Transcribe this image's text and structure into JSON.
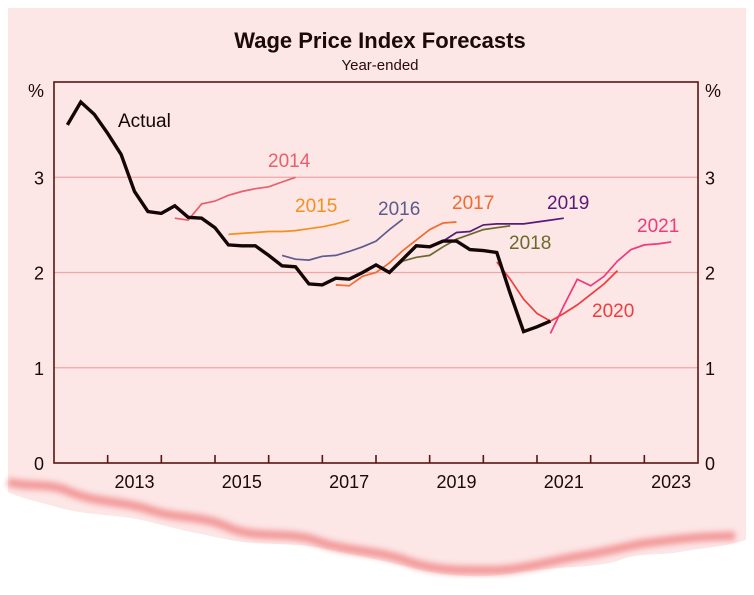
{
  "chart_data": {
    "type": "line",
    "title": "Wage Price Index Forecasts",
    "subtitle": "Year-ended",
    "ylabel_left": "%",
    "ylabel_right": "%",
    "xlabel": "",
    "ylim": [
      0,
      4
    ],
    "xlim": [
      2012,
      2024
    ],
    "y_ticks": [
      "0",
      "1",
      "2",
      "3"
    ],
    "x_tick_labels": [
      "2013",
      "2015",
      "2017",
      "2019",
      "2021",
      "2023"
    ],
    "grid": true,
    "frequency": "quarterly",
    "series": [
      {
        "name": "Actual",
        "label": "Actual",
        "color": "#140606",
        "start": "2012-Q1",
        "values": [
          3.55,
          3.79,
          3.66,
          3.46,
          3.24,
          2.85,
          2.64,
          2.62,
          2.7,
          2.58,
          2.57,
          2.47,
          2.29,
          2.28,
          2.28,
          2.18,
          2.07,
          2.06,
          1.88,
          1.87,
          1.94,
          1.93,
          2.0,
          2.08,
          2.0,
          2.14,
          2.28,
          2.27,
          2.33,
          2.33,
          2.24,
          2.23,
          2.21,
          1.78,
          1.38,
          1.43,
          1.49
        ]
      },
      {
        "name": "2014",
        "label": "2014",
        "color": "#e8606a",
        "start": "2014-Q1",
        "values": [
          2.57,
          2.55,
          2.72,
          2.75,
          2.81,
          2.85,
          2.88,
          2.9,
          2.95,
          3.0
        ]
      },
      {
        "name": "2015",
        "label": "2015",
        "color": "#f5901e",
        "start": "2015-Q1",
        "values": [
          2.4,
          2.41,
          2.42,
          2.43,
          2.43,
          2.44,
          2.46,
          2.48,
          2.51,
          2.55
        ]
      },
      {
        "name": "2016",
        "label": "2016",
        "color": "#5c5a8e",
        "start": "2016-Q1",
        "values": [
          2.18,
          2.14,
          2.13,
          2.17,
          2.18,
          2.22,
          2.27,
          2.33,
          2.45,
          2.56
        ]
      },
      {
        "name": "2017",
        "label": "2017",
        "color": "#f26a2e",
        "start": "2017-Q1",
        "values": [
          1.87,
          1.86,
          1.96,
          2.0,
          2.1,
          2.23,
          2.34,
          2.45,
          2.52,
          2.53
        ]
      },
      {
        "name": "2018",
        "label": "2018",
        "color": "#6b6a2a",
        "start": "2018-Q1",
        "values": [
          2.0,
          2.12,
          2.16,
          2.18,
          2.27,
          2.35,
          2.4,
          2.45,
          2.47,
          2.49
        ]
      },
      {
        "name": "2019",
        "label": "2019",
        "color": "#5a1a7a",
        "start": "2019-Q1",
        "values": [
          2.33,
          2.42,
          2.43,
          2.5,
          2.51,
          2.51,
          2.51,
          2.53,
          2.55,
          2.57
        ]
      },
      {
        "name": "2020",
        "label": "2020",
        "color": "#f23c3c",
        "start": "2020-Q1",
        "values": [
          2.11,
          1.93,
          1.72,
          1.57,
          1.49,
          1.57,
          1.66,
          1.77,
          1.88,
          2.02
        ]
      },
      {
        "name": "2021",
        "label": "2021",
        "color": "#f0387a",
        "start": "2021-Q1",
        "values": [
          1.36,
          1.65,
          1.93,
          1.86,
          1.96,
          2.12,
          2.24,
          2.29,
          2.3,
          2.32
        ]
      }
    ]
  },
  "colors": {
    "background": "#fce6e6",
    "frame": "#5a1414",
    "grid": "#f4a4a4",
    "torn_edge": "#f59a9a"
  }
}
